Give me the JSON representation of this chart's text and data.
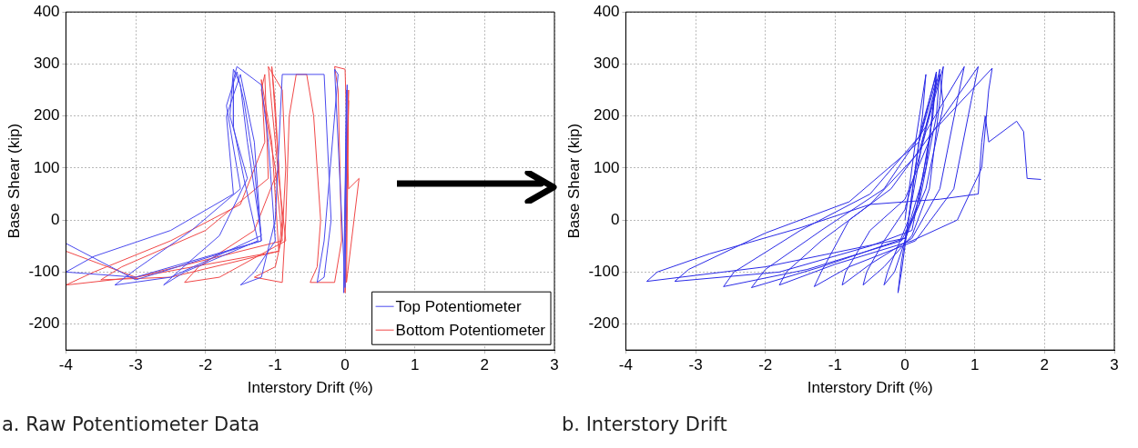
{
  "chart_data": [
    {
      "type": "line",
      "xlabel": "Interstory Drift (%)",
      "ylabel": "Base Shear (kip)",
      "annotations": [
        "a. Raw Potentiometer Data"
      ],
      "xlim": [
        -4,
        3
      ],
      "xticks": [
        -4,
        -3,
        -2,
        -1,
        0,
        1,
        2,
        3
      ],
      "ylim": [
        -250,
        400
      ],
      "yticks": [
        -200,
        -100,
        0,
        100,
        200,
        300,
        400
      ],
      "grid": true,
      "legend": "bottom right",
      "marker": "none",
      "line_style": "solid",
      "series": [
        {
          "name": "Top Potentiometer",
          "color": "#4a4aee",
          "x": [
            0,
            0.02,
            -0.02,
            0.03,
            0,
            -0.15,
            -0.1,
            -0.3,
            -0.4,
            -0.3,
            -0.2,
            -0.3,
            -0.9,
            -1.0,
            -1.2,
            -1.5,
            -1.3,
            -1.0,
            -1.1,
            -1.2,
            -1.55,
            -1.6,
            -1.6,
            -1.45,
            -1.25,
            -2.3,
            -2.6,
            -2.4,
            -1.8,
            -1.4,
            -1.65,
            -1.6,
            -1.5,
            -1.4,
            -1.2,
            -2.5,
            -3.3,
            -3,
            -2.2,
            -1.5,
            -1.7,
            -1.55,
            -1.45,
            -1.3,
            -1.2,
            -3,
            -4,
            -3.6,
            -2.5,
            -1.6,
            -1.7,
            -1.5,
            -1.3,
            -1.2,
            -3,
            -4
          ],
          "values": [
            0,
            250,
            -140,
            260,
            -130,
            290,
            280,
            -40,
            -120,
            -110,
            0,
            280,
            280,
            0,
            -110,
            -125,
            -100,
            -40,
            150,
            260,
            295,
            270,
            180,
            80,
            -40,
            -100,
            -125,
            -100,
            -30,
            80,
            200,
            290,
            260,
            150,
            -30,
            -110,
            -125,
            -95,
            -20,
            60,
            220,
            285,
            230,
            100,
            -40,
            -110,
            -100,
            -70,
            -20,
            50,
            200,
            280,
            150,
            -40,
            -115,
            -45
          ]
        },
        {
          "name": "Bottom Potentiometer",
          "color": "#f04848",
          "x": [
            0,
            0.05,
            0,
            0.05,
            0.02,
            0.2,
            0.05,
            0,
            -0.15,
            -0.1,
            -0.05,
            -0.15,
            -0.5,
            -0.4,
            -0.35,
            -0.45,
            -0.55,
            -0.7,
            -0.8,
            -0.85,
            -0.9,
            -1.3,
            -1.0,
            -0.9,
            -0.85,
            -0.9,
            -1.1,
            -1.05,
            -0.95,
            -0.85,
            -1.8,
            -2.3,
            -2.1,
            -1.3,
            -0.95,
            -1.0,
            -1.05,
            -1.0,
            -0.9,
            -0.95,
            -2.5,
            -3.5,
            -3.2,
            -2.0,
            -1.1,
            -1.15,
            -1.2,
            -1.0,
            -0.9,
            -3,
            -4,
            -3.6,
            -2.5,
            -1.5,
            -1.15,
            -1.2,
            -1.05,
            -0.95,
            -3,
            -4
          ],
          "values": [
            0,
            250,
            -140,
            230,
            -120,
            80,
            60,
            290,
            295,
            250,
            -40,
            -120,
            -120,
            -90,
            0,
            200,
            280,
            280,
            200,
            0,
            -120,
            -110,
            -90,
            -30,
            100,
            250,
            295,
            220,
            80,
            -40,
            -110,
            -120,
            -90,
            -20,
            100,
            220,
            295,
            200,
            0,
            -60,
            -110,
            -115,
            -90,
            -20,
            80,
            280,
            250,
            100,
            -40,
            -110,
            -125,
            -100,
            -40,
            30,
            150,
            270,
            150,
            -60,
            -110,
            -60
          ]
        }
      ]
    },
    {
      "type": "line",
      "xlabel": "Interstory Drift (%)",
      "ylabel": "Base Shear (kip)",
      "annotations": [
        "b. Interstory Drift"
      ],
      "xlim": [
        -4,
        3
      ],
      "xticks": [
        -4,
        -3,
        -2,
        -1,
        0,
        1,
        2,
        3
      ],
      "ylim": [
        -250,
        400
      ],
      "yticks": [
        -200,
        -100,
        0,
        100,
        200,
        300,
        400
      ],
      "grid": true,
      "marker": "none",
      "line_style": "solid",
      "series": [
        {
          "color": "#2a2ae6",
          "x": [
            0,
            0.15,
            0.3,
            0.25,
            0.05,
            -0.05,
            -0.1,
            -0.05,
            0.05,
            0.2,
            0.45,
            0.4,
            0.2,
            0,
            -0.15,
            -0.3,
            -0.25,
            -0.1,
            0.05,
            0.25,
            0.55,
            0.5,
            0.35,
            0.1,
            -0.3,
            -0.6,
            -0.55,
            -0.3,
            0,
            0.3,
            0.85,
            0.75,
            0.5,
            0.1,
            -0.5,
            -0.9,
            -0.85,
            -0.5,
            0,
            0.4,
            1.05,
            0.95,
            0.7,
            0.15,
            -0.8,
            -1.3,
            -1.2,
            -0.8,
            -0.2,
            0.4,
            1.25,
            1.2,
            1.1,
            0.75,
            0.1,
            -1,
            -1.8,
            -1.7,
            -1.2,
            -0.5,
            0.2,
            0.5,
            0.55,
            0.3,
            0,
            -1.2,
            -2.2,
            -2.0,
            -1.2,
            -0.3,
            0.3,
            0.5,
            0.45,
            0.2,
            -0.05,
            -1.4,
            -2.6,
            -2.45,
            -1.5,
            -0.5,
            0.2,
            0.45,
            0.35,
            0.1,
            -0.5,
            -1.8,
            -3.3,
            -3.1,
            -2,
            -0.8,
            0.2,
            0.45,
            0.3,
            0,
            -2,
            -3.7,
            -3.55,
            -2.8,
            -1.5,
            -0.5,
            0.5,
            1.05,
            1.1,
            1.15,
            1.2,
            1.6,
            1.7,
            1.75,
            1.95
          ],
          "values": [
            0,
            150,
            280,
            200,
            0,
            -100,
            -140,
            -80,
            0,
            150,
            285,
            200,
            40,
            -40,
            -100,
            -125,
            -100,
            -50,
            0,
            150,
            295,
            230,
            60,
            -30,
            -90,
            -125,
            -100,
            -40,
            20,
            170,
            295,
            230,
            60,
            -35,
            -85,
            -125,
            -100,
            -20,
            40,
            170,
            295,
            230,
            60,
            -40,
            -90,
            -128,
            -100,
            0,
            60,
            170,
            292,
            250,
            100,
            0,
            -40,
            -85,
            -125,
            -100,
            -40,
            30,
            130,
            280,
            220,
            60,
            -35,
            -90,
            -130,
            -95,
            -20,
            60,
            180,
            290,
            200,
            30,
            -40,
            -95,
            -128,
            -100,
            -20,
            50,
            160,
            280,
            150,
            -20,
            -50,
            -100,
            -118,
            -95,
            -25,
            35,
            150,
            270,
            100,
            -35,
            -90,
            -118,
            -100,
            -65,
            -15,
            30,
            40,
            50,
            150,
            200,
            150,
            190,
            170,
            80,
            78
          ]
        }
      ]
    }
  ]
}
